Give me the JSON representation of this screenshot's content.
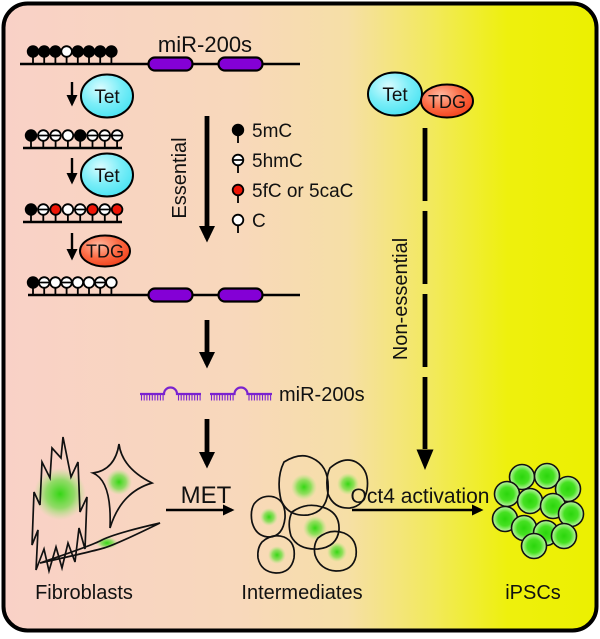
{
  "colors": {
    "background_left": "#f9d1c7",
    "background_right": "#ecf000",
    "tet_fill": "#35dff0",
    "tdg_fill": "#ee2a06",
    "gene_box": "#8400d6",
    "hairpin": "#7a22cf",
    "mark_5mC": "#000000",
    "mark_5hmC": "#ffffff",
    "mark_5fC_5caC": "#ee1505",
    "mark_C": "#ffffff",
    "pathway_label": "#533414",
    "cell_green": "#2bd60c"
  },
  "title": {
    "gene_label": "miR-200s"
  },
  "enzymes": {
    "tet": "Tet",
    "tdg": "TDG"
  },
  "methylation_rows": [
    {
      "marks": [
        "5mC",
        "5mC",
        "5mC",
        "C",
        "5mC",
        "5mC",
        "5mC",
        "5mC"
      ]
    },
    {
      "marks": [
        "5mC",
        "5hmC",
        "5hmC",
        "C",
        "5mC",
        "5hmC",
        "5hmC",
        "5hmC"
      ]
    },
    {
      "marks": [
        "5mC",
        "5hmC",
        "5fC_5caC",
        "C",
        "5hmC",
        "5fC_5caC",
        "5hmC",
        "5fC_5caC"
      ]
    },
    {
      "marks": [
        "5mC",
        "5hmC",
        "C",
        "5hmC",
        "C",
        "C",
        "5hmC",
        "C"
      ]
    }
  ],
  "legend": {
    "items": [
      {
        "glyph": "5mC",
        "label": "5mC"
      },
      {
        "glyph": "5hmC",
        "label": "5hmC"
      },
      {
        "glyph": "5fC_5caC",
        "label": "5fC or 5caC"
      },
      {
        "glyph": "C",
        "label": "C"
      }
    ]
  },
  "pathways": {
    "essential": "Essential",
    "non_essential": "Non-essential"
  },
  "mirna": {
    "label": "miR-200s",
    "hairpin_count": 2
  },
  "transitions": {
    "met": "MET",
    "oct4": "Oct4 activation"
  },
  "cells": {
    "fibroblasts": "Fibroblasts",
    "intermediates": "Intermediates",
    "ipscs": "iPSCs"
  }
}
